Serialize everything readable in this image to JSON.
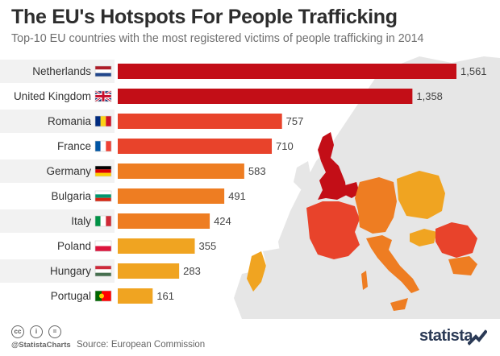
{
  "header": {
    "title": "The EU's Hotspots For People Trafficking",
    "subtitle": "Top-10 EU countries with the most registered victims of people trafficking in 2014"
  },
  "chart_data": {
    "type": "bar",
    "orientation": "horizontal",
    "title": "The EU's Hotspots For People Trafficking",
    "subtitle": "Top-10 EU countries with the most registered victims of people trafficking in 2014",
    "categories": [
      "Netherlands",
      "United Kingdom",
      "Romania",
      "France",
      "Germany",
      "Bulgaria",
      "Italy",
      "Poland",
      "Hungary",
      "Portugal"
    ],
    "values": [
      1561,
      1358,
      757,
      710,
      583,
      491,
      424,
      355,
      283,
      161
    ],
    "value_labels": [
      "1,561",
      "1,358",
      "757",
      "710",
      "583",
      "491",
      "424",
      "355",
      "283",
      "161"
    ],
    "bar_colors": [
      "#c30e17",
      "#c30e17",
      "#e8432b",
      "#e8432b",
      "#ee7d22",
      "#ee7d22",
      "#ee7d22",
      "#f0a421",
      "#f0a421",
      "#f0a421"
    ],
    "flags": [
      "netherlands-flag",
      "uk-flag",
      "romania-flag",
      "france-flag",
      "germany-flag",
      "bulgaria-flag",
      "italy-flag",
      "poland-flag",
      "hungary-flag",
      "portugal-flag"
    ],
    "xlabel": "",
    "ylabel": "",
    "xlim": [
      0,
      1561
    ],
    "grid": false
  },
  "footer": {
    "handle": "@StatistaCharts",
    "source_label": "Source:",
    "source": "European Commission",
    "brand": "statista",
    "license_icons": [
      "cc-icon",
      "by-icon",
      "equals-icon"
    ]
  },
  "colors": {
    "dark_red": "#c30e17",
    "red": "#e8432b",
    "orange": "#ee7d22",
    "yellow": "#f0a421",
    "map_grey": "#e6e6e6"
  }
}
